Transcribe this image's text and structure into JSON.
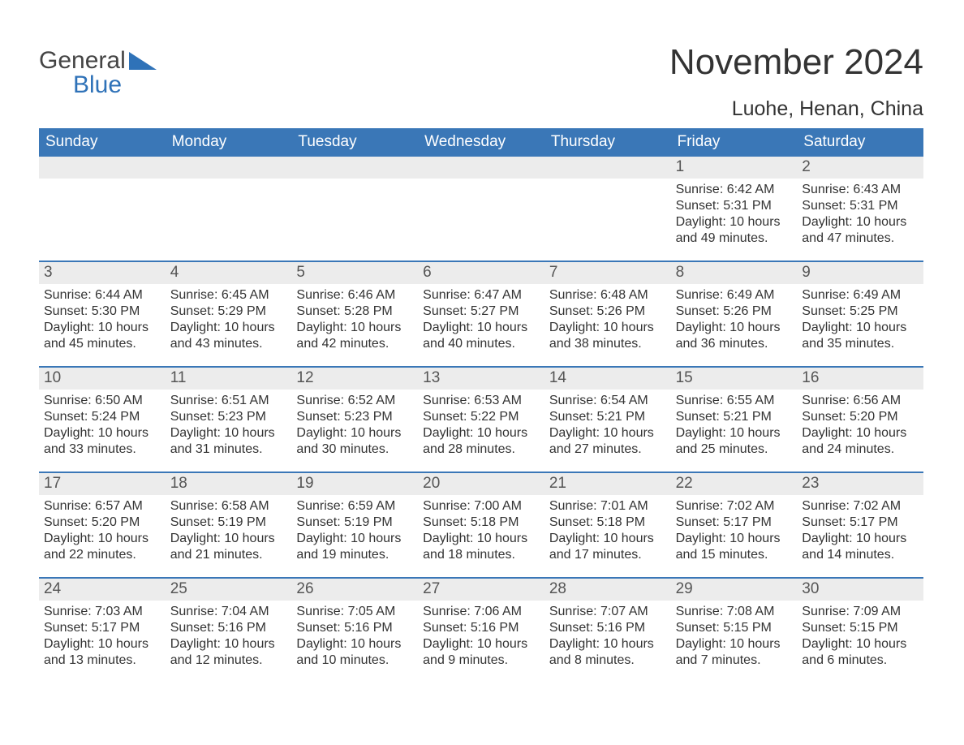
{
  "logo": {
    "word1": "General",
    "word2": "Blue",
    "accent_color": "#2f72b8"
  },
  "header": {
    "month_title": "November 2024",
    "location": "Luohe, Henan, China"
  },
  "colors": {
    "header_bg": "#3a77b7",
    "header_text": "#ffffff",
    "daynum_bg": "#ececec",
    "text": "#333333",
    "row_divider": "#3a77b7",
    "page_bg": "#ffffff"
  },
  "typography": {
    "month_title_fontsize": 44,
    "location_fontsize": 25,
    "dow_fontsize": 19,
    "daynum_fontsize": 19,
    "body_fontsize": 16
  },
  "calendar": {
    "type": "table",
    "days_of_week": [
      "Sunday",
      "Monday",
      "Tuesday",
      "Wednesday",
      "Thursday",
      "Friday",
      "Saturday"
    ],
    "weeks": [
      [
        {
          "day": null
        },
        {
          "day": null
        },
        {
          "day": null
        },
        {
          "day": null
        },
        {
          "day": null
        },
        {
          "day": 1,
          "sunrise": "Sunrise: 6:42 AM",
          "sunset": "Sunset: 5:31 PM",
          "daylight1": "Daylight: 10 hours",
          "daylight2": "and 49 minutes."
        },
        {
          "day": 2,
          "sunrise": "Sunrise: 6:43 AM",
          "sunset": "Sunset: 5:31 PM",
          "daylight1": "Daylight: 10 hours",
          "daylight2": "and 47 minutes."
        }
      ],
      [
        {
          "day": 3,
          "sunrise": "Sunrise: 6:44 AM",
          "sunset": "Sunset: 5:30 PM",
          "daylight1": "Daylight: 10 hours",
          "daylight2": "and 45 minutes."
        },
        {
          "day": 4,
          "sunrise": "Sunrise: 6:45 AM",
          "sunset": "Sunset: 5:29 PM",
          "daylight1": "Daylight: 10 hours",
          "daylight2": "and 43 minutes."
        },
        {
          "day": 5,
          "sunrise": "Sunrise: 6:46 AM",
          "sunset": "Sunset: 5:28 PM",
          "daylight1": "Daylight: 10 hours",
          "daylight2": "and 42 minutes."
        },
        {
          "day": 6,
          "sunrise": "Sunrise: 6:47 AM",
          "sunset": "Sunset: 5:27 PM",
          "daylight1": "Daylight: 10 hours",
          "daylight2": "and 40 minutes."
        },
        {
          "day": 7,
          "sunrise": "Sunrise: 6:48 AM",
          "sunset": "Sunset: 5:26 PM",
          "daylight1": "Daylight: 10 hours",
          "daylight2": "and 38 minutes."
        },
        {
          "day": 8,
          "sunrise": "Sunrise: 6:49 AM",
          "sunset": "Sunset: 5:26 PM",
          "daylight1": "Daylight: 10 hours",
          "daylight2": "and 36 minutes."
        },
        {
          "day": 9,
          "sunrise": "Sunrise: 6:49 AM",
          "sunset": "Sunset: 5:25 PM",
          "daylight1": "Daylight: 10 hours",
          "daylight2": "and 35 minutes."
        }
      ],
      [
        {
          "day": 10,
          "sunrise": "Sunrise: 6:50 AM",
          "sunset": "Sunset: 5:24 PM",
          "daylight1": "Daylight: 10 hours",
          "daylight2": "and 33 minutes."
        },
        {
          "day": 11,
          "sunrise": "Sunrise: 6:51 AM",
          "sunset": "Sunset: 5:23 PM",
          "daylight1": "Daylight: 10 hours",
          "daylight2": "and 31 minutes."
        },
        {
          "day": 12,
          "sunrise": "Sunrise: 6:52 AM",
          "sunset": "Sunset: 5:23 PM",
          "daylight1": "Daylight: 10 hours",
          "daylight2": "and 30 minutes."
        },
        {
          "day": 13,
          "sunrise": "Sunrise: 6:53 AM",
          "sunset": "Sunset: 5:22 PM",
          "daylight1": "Daylight: 10 hours",
          "daylight2": "and 28 minutes."
        },
        {
          "day": 14,
          "sunrise": "Sunrise: 6:54 AM",
          "sunset": "Sunset: 5:21 PM",
          "daylight1": "Daylight: 10 hours",
          "daylight2": "and 27 minutes."
        },
        {
          "day": 15,
          "sunrise": "Sunrise: 6:55 AM",
          "sunset": "Sunset: 5:21 PM",
          "daylight1": "Daylight: 10 hours",
          "daylight2": "and 25 minutes."
        },
        {
          "day": 16,
          "sunrise": "Sunrise: 6:56 AM",
          "sunset": "Sunset: 5:20 PM",
          "daylight1": "Daylight: 10 hours",
          "daylight2": "and 24 minutes."
        }
      ],
      [
        {
          "day": 17,
          "sunrise": "Sunrise: 6:57 AM",
          "sunset": "Sunset: 5:20 PM",
          "daylight1": "Daylight: 10 hours",
          "daylight2": "and 22 minutes."
        },
        {
          "day": 18,
          "sunrise": "Sunrise: 6:58 AM",
          "sunset": "Sunset: 5:19 PM",
          "daylight1": "Daylight: 10 hours",
          "daylight2": "and 21 minutes."
        },
        {
          "day": 19,
          "sunrise": "Sunrise: 6:59 AM",
          "sunset": "Sunset: 5:19 PM",
          "daylight1": "Daylight: 10 hours",
          "daylight2": "and 19 minutes."
        },
        {
          "day": 20,
          "sunrise": "Sunrise: 7:00 AM",
          "sunset": "Sunset: 5:18 PM",
          "daylight1": "Daylight: 10 hours",
          "daylight2": "and 18 minutes."
        },
        {
          "day": 21,
          "sunrise": "Sunrise: 7:01 AM",
          "sunset": "Sunset: 5:18 PM",
          "daylight1": "Daylight: 10 hours",
          "daylight2": "and 17 minutes."
        },
        {
          "day": 22,
          "sunrise": "Sunrise: 7:02 AM",
          "sunset": "Sunset: 5:17 PM",
          "daylight1": "Daylight: 10 hours",
          "daylight2": "and 15 minutes."
        },
        {
          "day": 23,
          "sunrise": "Sunrise: 7:02 AM",
          "sunset": "Sunset: 5:17 PM",
          "daylight1": "Daylight: 10 hours",
          "daylight2": "and 14 minutes."
        }
      ],
      [
        {
          "day": 24,
          "sunrise": "Sunrise: 7:03 AM",
          "sunset": "Sunset: 5:17 PM",
          "daylight1": "Daylight: 10 hours",
          "daylight2": "and 13 minutes."
        },
        {
          "day": 25,
          "sunrise": "Sunrise: 7:04 AM",
          "sunset": "Sunset: 5:16 PM",
          "daylight1": "Daylight: 10 hours",
          "daylight2": "and 12 minutes."
        },
        {
          "day": 26,
          "sunrise": "Sunrise: 7:05 AM",
          "sunset": "Sunset: 5:16 PM",
          "daylight1": "Daylight: 10 hours",
          "daylight2": "and 10 minutes."
        },
        {
          "day": 27,
          "sunrise": "Sunrise: 7:06 AM",
          "sunset": "Sunset: 5:16 PM",
          "daylight1": "Daylight: 10 hours",
          "daylight2": "and 9 minutes."
        },
        {
          "day": 28,
          "sunrise": "Sunrise: 7:07 AM",
          "sunset": "Sunset: 5:16 PM",
          "daylight1": "Daylight: 10 hours",
          "daylight2": "and 8 minutes."
        },
        {
          "day": 29,
          "sunrise": "Sunrise: 7:08 AM",
          "sunset": "Sunset: 5:15 PM",
          "daylight1": "Daylight: 10 hours",
          "daylight2": "and 7 minutes."
        },
        {
          "day": 30,
          "sunrise": "Sunrise: 7:09 AM",
          "sunset": "Sunset: 5:15 PM",
          "daylight1": "Daylight: 10 hours",
          "daylight2": "and 6 minutes."
        }
      ]
    ]
  }
}
